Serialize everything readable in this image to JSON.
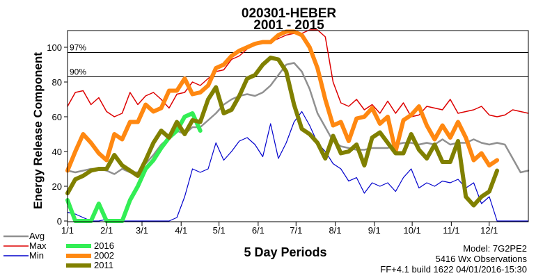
{
  "chart_data": {
    "type": "line",
    "title": "020301-HEBER",
    "subtitle": "2001 - 2015",
    "ylabel": "Energy Release Component",
    "xlabel": "5 Day Periods",
    "ylim": [
      0,
      112
    ],
    "yticks": [
      0,
      20,
      40,
      60,
      80,
      100
    ],
    "x_tick_labels": [
      "1/1",
      "2/1",
      "3/1",
      "4/1",
      "5/1",
      "6/1",
      "7/1",
      "8/1",
      "9/1",
      "10/1",
      "11/1",
      "12/1"
    ],
    "grid": false,
    "percentiles": [
      {
        "label": "97%",
        "value": 97
      },
      {
        "label": "90%",
        "value": 83
      }
    ],
    "legend_placement": "bottom-left",
    "series": [
      {
        "name": "Avg",
        "color": "#909090",
        "values": [
          29,
          28,
          29,
          30,
          30,
          29,
          27,
          30,
          28,
          28,
          33,
          38,
          44,
          48,
          52,
          50,
          54,
          54,
          58,
          62,
          67,
          70,
          72,
          73,
          72,
          74,
          78,
          84,
          90,
          91,
          86,
          76,
          62,
          54,
          46,
          43,
          42,
          41,
          41,
          42,
          42,
          42,
          44,
          45,
          45,
          44,
          45,
          44,
          47,
          44,
          45,
          45,
          47,
          45,
          44,
          45,
          44,
          36,
          28,
          29
        ]
      },
      {
        "name": "Max",
        "color": "#dd0000",
        "values": [
          66,
          74,
          75,
          67,
          71,
          63,
          60,
          62,
          74,
          67,
          72,
          74,
          70,
          65,
          73,
          74,
          80,
          78,
          82,
          86,
          87,
          93,
          95,
          99,
          102,
          103,
          103,
          105,
          107,
          108,
          108,
          110,
          110,
          106,
          80,
          68,
          66,
          70,
          64,
          67,
          62,
          69,
          62,
          68,
          60,
          61,
          66,
          65,
          64,
          70,
          62,
          63,
          64,
          66,
          61,
          60,
          61,
          64,
          63,
          62
        ]
      },
      {
        "name": "Min",
        "color": "#0000cc",
        "values": [
          5,
          4,
          2,
          0,
          0,
          1,
          0,
          0,
          0,
          0,
          0,
          0,
          0,
          0,
          2,
          14,
          30,
          28,
          30,
          45,
          35,
          40,
          46,
          48,
          44,
          37,
          56,
          36,
          45,
          57,
          63,
          55,
          45,
          40,
          33,
          30,
          23,
          25,
          16,
          22,
          20,
          22,
          17,
          25,
          30,
          19,
          22,
          20,
          23,
          22,
          24,
          19,
          22,
          10,
          14,
          0,
          0,
          0,
          0,
          0
        ]
      },
      {
        "name": "2016",
        "color": "#33ee55",
        "values": [
          12,
          0,
          0,
          0,
          10,
          0,
          0,
          0,
          12,
          20,
          30,
          35,
          42,
          48,
          52,
          60,
          62,
          52
        ]
      },
      {
        "name": "2002",
        "color": "#ff8811",
        "values": [
          29,
          40,
          50,
          45,
          39,
          35,
          50,
          47,
          57,
          57,
          67,
          63,
          65,
          75,
          75,
          82,
          73,
          74,
          78,
          88,
          90,
          95,
          98,
          100,
          102,
          103,
          103,
          107,
          109,
          109,
          107,
          100,
          88,
          70,
          55,
          57,
          46,
          59,
          60,
          65,
          56,
          60,
          40,
          58,
          61,
          66,
          55,
          47,
          55,
          48,
          57,
          48,
          35,
          39,
          32,
          35
        ]
      },
      {
        "name": "2011",
        "color": "#808000",
        "values": [
          16,
          24,
          26,
          29,
          30,
          30,
          38,
          32,
          29,
          26,
          35,
          45,
          52,
          48,
          57,
          50,
          58,
          57,
          70,
          77,
          62,
          64,
          72,
          82,
          84,
          90,
          94,
          93,
          86,
          67,
          53,
          50,
          45,
          36,
          49,
          39,
          40,
          44,
          32,
          48,
          51,
          45,
          39,
          39,
          50,
          41,
          36,
          44,
          34,
          34,
          46,
          14,
          9,
          14,
          17,
          29
        ]
      }
    ],
    "legend": [
      {
        "name": "Avg",
        "color": "#909090"
      },
      {
        "name": "Max",
        "color": "#dd0000"
      },
      {
        "name": "Min",
        "color": "#0000cc"
      },
      {
        "name": "2016",
        "color": "#33ee55"
      },
      {
        "name": "2002",
        "color": "#ff8811"
      },
      {
        "name": "2011",
        "color": "#808000"
      }
    ]
  },
  "model_line": "Model: 7G2PE2",
  "observations_line": "5416 Wx Observations",
  "build_line": "FF+4.1 build 1622 04/01/2016-15:30"
}
